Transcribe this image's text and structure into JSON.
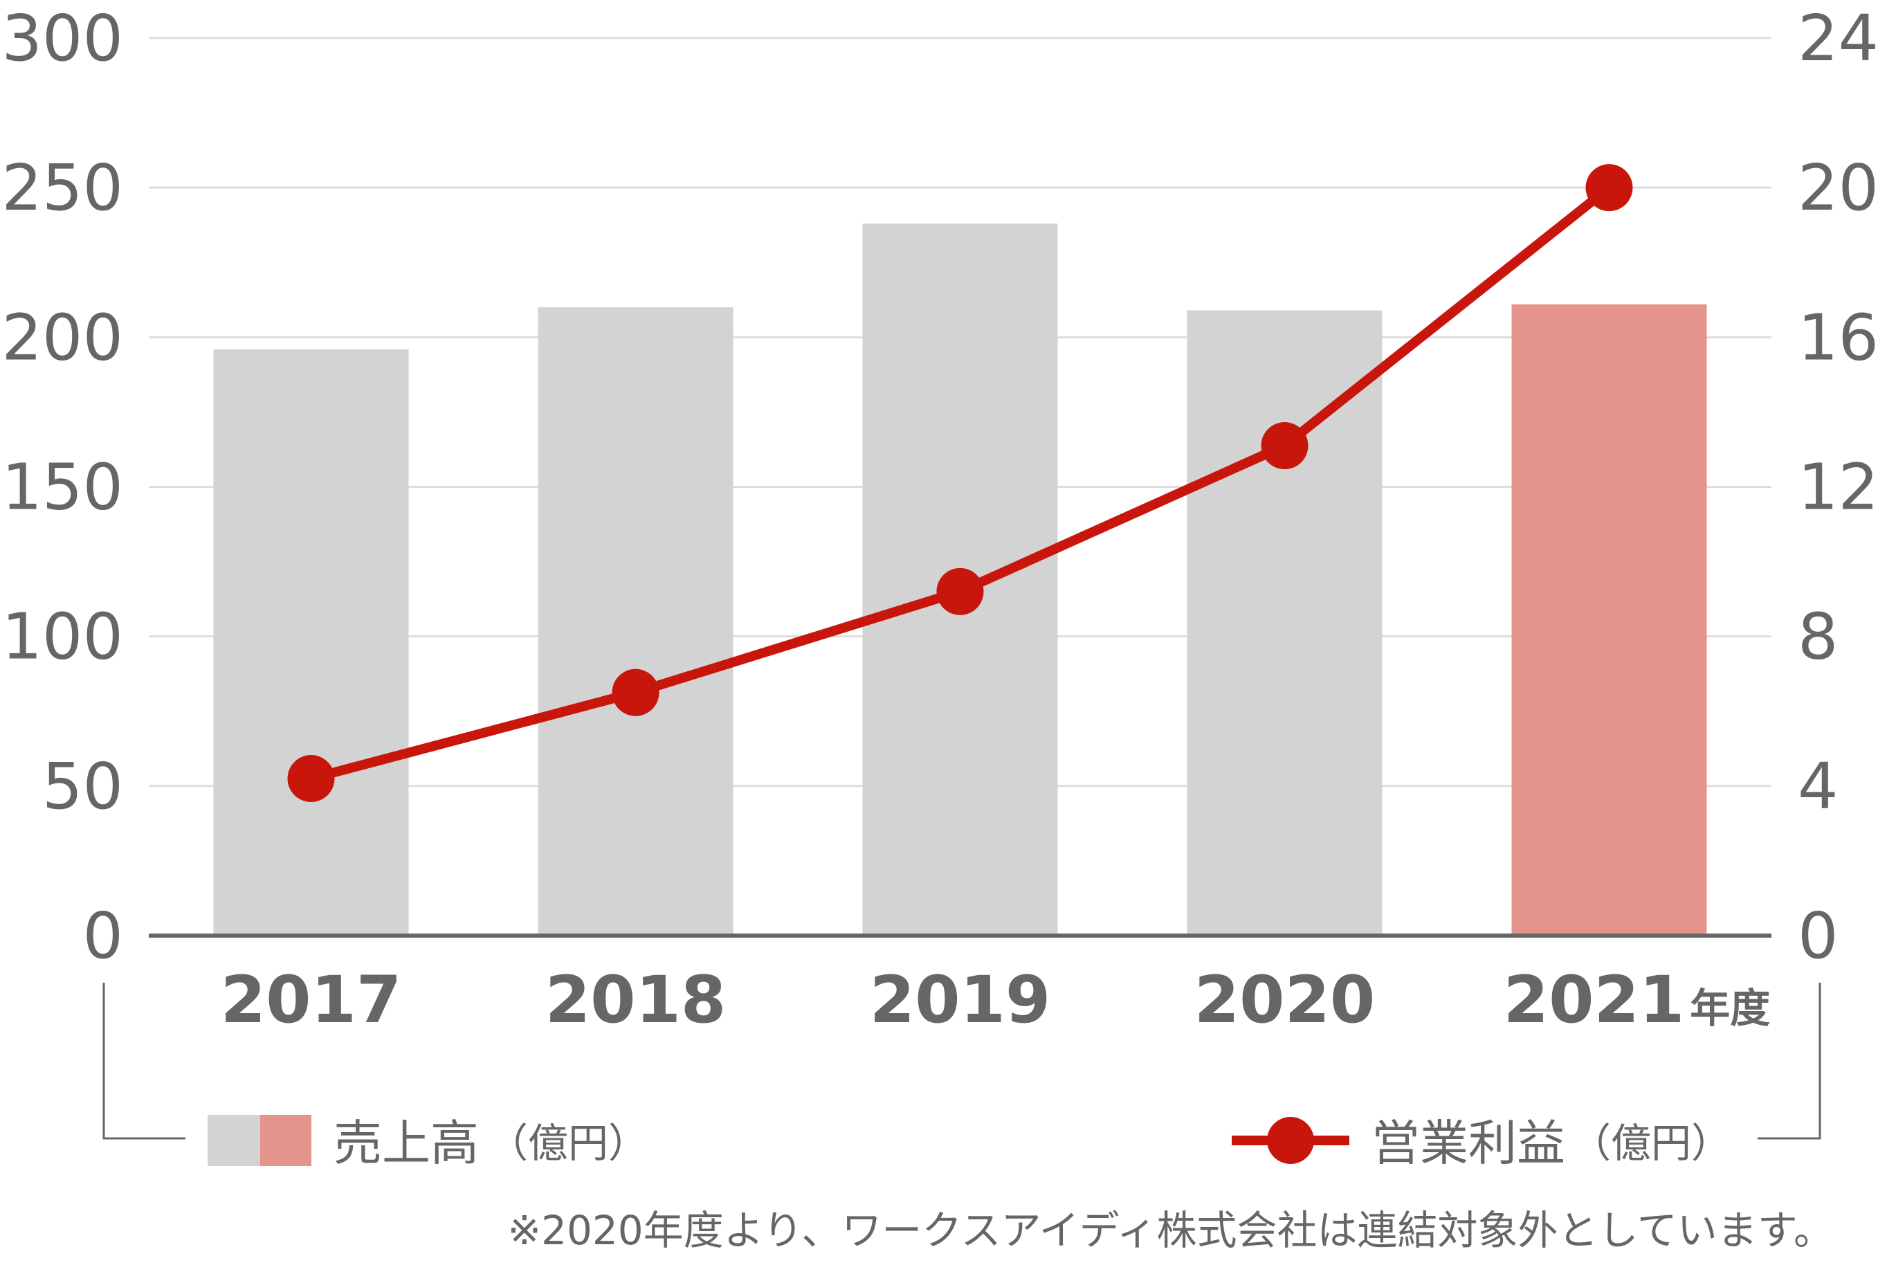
{
  "colors": {
    "bar": "#d3d3d3",
    "bar_highlight": "#e5948b",
    "line": "#c8160d",
    "axis": "#666666",
    "grid": "#dddddd",
    "text": "#666666",
    "highlight_text": "#c8160d"
  },
  "chart_data": {
    "type": "bar",
    "categories": [
      "2017",
      "2018",
      "2019",
      "2020",
      "2021"
    ],
    "category_suffix": "年度",
    "highlight_index": 4,
    "y_left": {
      "ticks": [
        "0",
        "50",
        "100",
        "150",
        "200",
        "250",
        "300"
      ],
      "ylim": [
        0,
        300
      ]
    },
    "y_right": {
      "ticks": [
        "0",
        "4",
        "8",
        "12",
        "16",
        "20",
        "24"
      ],
      "ylim": [
        0,
        24
      ]
    },
    "grid": true,
    "series": [
      {
        "name": "売上高",
        "unit": "（億円）",
        "type": "bar",
        "axis": "left",
        "values": [
          196,
          210,
          238,
          209,
          211
        ]
      },
      {
        "name": "営業利益",
        "unit": "（億円）",
        "type": "line",
        "axis": "right",
        "values": [
          4.2,
          6.5,
          9.2,
          13.1,
          20.0
        ]
      }
    ],
    "legend_placement": "bottom"
  },
  "legend": {
    "bar_label": "売上高",
    "bar_unit": "（億円）",
    "line_label": "営業利益",
    "line_unit": "（億円）"
  },
  "note": "※2020年度より、ワークスアイディ株式会社は連結対象外としています。"
}
